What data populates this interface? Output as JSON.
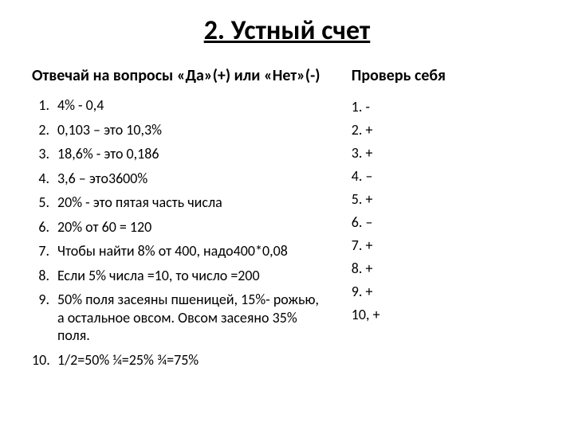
{
  "title": "2. Устный счет",
  "left_heading": "Отвечай на вопросы «Да»(+) или «Нет»(-)",
  "right_heading": "Проверь себя",
  "questions": [
    {
      "n": "1.",
      "text": " 4% - 0,4"
    },
    {
      "n": "2.",
      "text": "0,103 – это 10,3%"
    },
    {
      "n": "3.",
      "text": "18,6% - это 0,186"
    },
    {
      "n": "4.",
      "text": "3,6 – это3600%"
    },
    {
      "n": "5.",
      "text": "20%  - это пятая часть числа"
    },
    {
      "n": "6.",
      "text": "20% от 60 = 120"
    },
    {
      "n": "7.",
      "text": "Чтобы найти 8% от 400, надо400*0,08"
    },
    {
      "n": "8.",
      "text": "Если 5% числа =10, то число =200"
    },
    {
      "n": "9.",
      "text": "50% поля засеяны пшеницей, 15%- рожью, а остальное овсом. Овсом засеяно 35% поля."
    },
    {
      "n": "10.",
      "text": "1/2=50%      ¼=25%         ¾=75%"
    }
  ],
  "answers": [
    "1. -",
    "2. +",
    "3. +",
    "4. –",
    "5. +",
    "6. –",
    "7. +",
    "8. +",
    "9. +",
    "10, +"
  ],
  "colors": {
    "background": "#ffffff",
    "text": "#000000"
  },
  "fonts": {
    "title_size": 34,
    "heading_size": 20,
    "body_size": 18
  }
}
